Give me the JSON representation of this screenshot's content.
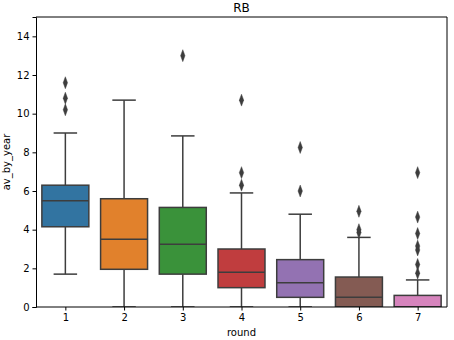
{
  "chart_data": {
    "type": "box",
    "title": "RB",
    "x_label": "round",
    "y_label": "av_by_year",
    "categories": [
      "1",
      "2",
      "3",
      "4",
      "5",
      "6",
      "7"
    ],
    "colors": [
      "#3274a1",
      "#e1812c",
      "#3a923a",
      "#c03d3e",
      "#9372b2",
      "#845b53",
      "#d684bd"
    ],
    "boxes": [
      {
        "whislo": 1.7,
        "q1": 4.15,
        "med": 5.5,
        "q3": 6.3,
        "whishi": 9.0,
        "fliers": [
          10.2,
          10.8,
          11.6
        ]
      },
      {
        "whislo": 0,
        "q1": 1.95,
        "med": 3.5,
        "q3": 5.6,
        "whishi": 10.7,
        "fliers": []
      },
      {
        "whislo": 0,
        "q1": 1.7,
        "med": 3.25,
        "q3": 5.15,
        "whishi": 8.85,
        "fliers": [
          13.0
        ]
      },
      {
        "whislo": 0,
        "q1": 1.0,
        "med": 1.8,
        "q3": 3.0,
        "whishi": 5.9,
        "fliers": [
          6.3,
          6.95,
          10.7
        ]
      },
      {
        "whislo": 0,
        "q1": 0.5,
        "med": 1.25,
        "q3": 2.45,
        "whishi": 4.8,
        "fliers": [
          6.0,
          8.25
        ]
      },
      {
        "whislo": 0,
        "q1": 0,
        "med": 0.5,
        "q3": 1.55,
        "whishi": 3.6,
        "fliers": [
          3.85,
          4.0,
          4.95
        ]
      },
      {
        "whislo": 0,
        "q1": 0,
        "med": 0,
        "q3": 0.6,
        "whishi": 1.4,
        "fliers": [
          1.75,
          2.2,
          2.95,
          3.15,
          3.8,
          4.65,
          6.95
        ]
      }
    ],
    "ylim": [
      0,
      15
    ],
    "yticks": [
      0,
      2,
      4,
      6,
      8,
      10,
      12,
      14
    ]
  }
}
